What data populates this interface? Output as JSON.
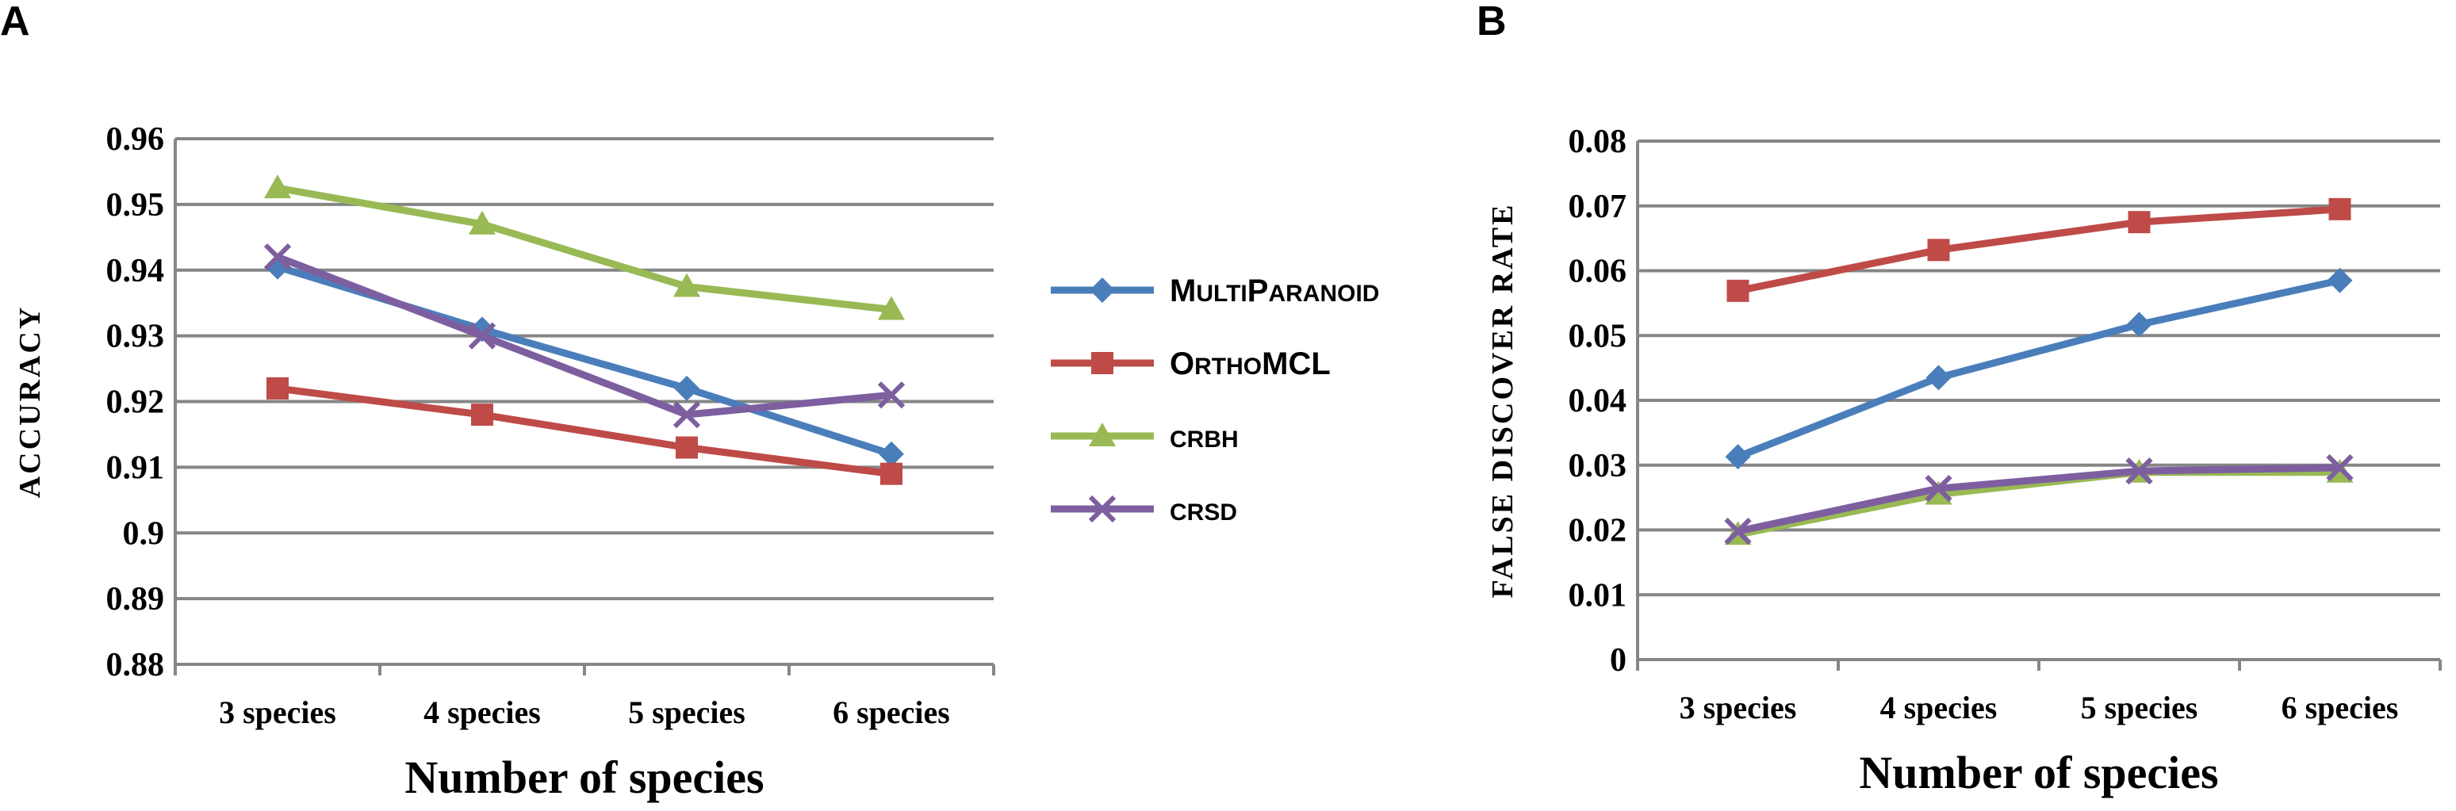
{
  "chart_data": [
    {
      "panel": "A",
      "type": "line",
      "categories": [
        "3 species",
        "4 species",
        "5 species",
        "6 species"
      ],
      "xlabel": "Number of species",
      "ylabel": "ACCURACY",
      "ylim": [
        0.88,
        0.96
      ],
      "yticks": [
        "0.88",
        "0.89",
        "0.9",
        "0.91",
        "0.92",
        "0.93",
        "0.94",
        "0.95",
        "0.96"
      ],
      "grid": true,
      "series": [
        {
          "name": "MultiParanoid",
          "color": "#4A7EBB",
          "marker": "diamond",
          "values": [
            0.9405,
            0.931,
            0.922,
            0.912
          ]
        },
        {
          "name": "OrthoMCL",
          "color": "#BE4B48",
          "marker": "square",
          "values": [
            0.922,
            0.918,
            0.913,
            0.909
          ]
        },
        {
          "name": "cRBH",
          "color": "#98B954",
          "marker": "triangle",
          "values": [
            0.9525,
            0.947,
            0.9375,
            0.934
          ]
        },
        {
          "name": "cRSD",
          "color": "#7D5FA0",
          "marker": "x",
          "values": [
            0.942,
            0.93,
            0.918,
            0.921
          ]
        }
      ]
    },
    {
      "panel": "B",
      "type": "line",
      "categories": [
        "3 species",
        "4 species",
        "5 species",
        "6 species"
      ],
      "xlabel": "Number of species",
      "ylabel": "FALSE DISCOVER RATE",
      "ylim": [
        0,
        0.08
      ],
      "yticks": [
        "0",
        "0.01",
        "0.02",
        "0.03",
        "0.04",
        "0.05",
        "0.06",
        "0.07",
        "0.08"
      ],
      "grid": true,
      "series": [
        {
          "name": "MultiParanoid",
          "color": "#4A7EBB",
          "marker": "diamond",
          "values": [
            0.0313,
            0.0435,
            0.0517,
            0.0585
          ]
        },
        {
          "name": "OrthoMCL",
          "color": "#BE4B48",
          "marker": "square",
          "values": [
            0.0569,
            0.0632,
            0.0675,
            0.0695
          ]
        },
        {
          "name": "cRBH",
          "color": "#98B954",
          "marker": "triangle",
          "values": [
            0.0193,
            0.0255,
            0.0289,
            0.0289
          ]
        },
        {
          "name": "cRSD",
          "color": "#7D5FA0",
          "marker": "x",
          "values": [
            0.0198,
            0.0264,
            0.0291,
            0.0296
          ]
        }
      ]
    }
  ],
  "legend": {
    "placement": "between-panels",
    "items": [
      {
        "big": [
          "M",
          "ULTI",
          "P",
          "ARANOID"
        ]
      },
      {
        "big": [
          "O",
          "RTHO",
          "MCL",
          ""
        ]
      },
      {
        "big": [
          "C",
          "RBH",
          "",
          ""
        ]
      },
      {
        "big": [
          "C",
          "RSD",
          "",
          ""
        ]
      }
    ]
  }
}
